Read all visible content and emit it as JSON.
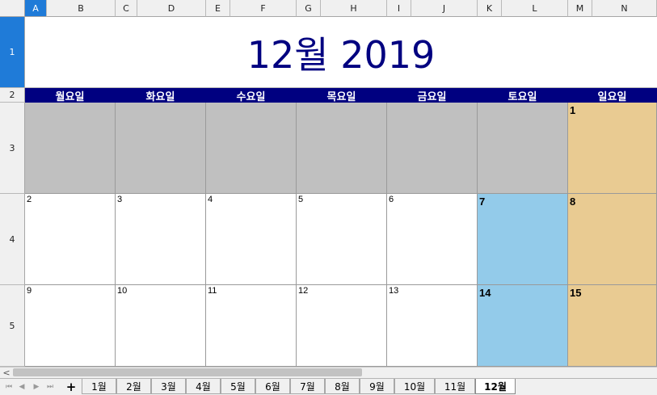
{
  "columns": [
    "A",
    "B",
    "C",
    "D",
    "E",
    "F",
    "G",
    "H",
    "I",
    "J",
    "K",
    "L",
    "M",
    "N"
  ],
  "selected_column": "A",
  "rows": [
    "1",
    "2",
    "3",
    "4",
    "5"
  ],
  "selected_row": "1",
  "calendar": {
    "title": "12월 2019",
    "weekdays": [
      "월요일",
      "화요일",
      "수요일",
      "목요일",
      "금요일",
      "토요일",
      "일요일"
    ],
    "weeks": [
      [
        "",
        "",
        "",
        "",
        "",
        "",
        "1"
      ],
      [
        "2",
        "3",
        "4",
        "5",
        "6",
        "7",
        "8"
      ],
      [
        "9",
        "10",
        "11",
        "12",
        "13",
        "14",
        "15"
      ]
    ]
  },
  "colors": {
    "title_text": "#000080",
    "weekday_header_bg": "#000080",
    "empty_cell": "#c0c0c0",
    "saturday": "#93cbea",
    "sunday": "#e9cb92",
    "selection": "#1f7bd8"
  },
  "sheet_tabs": [
    "1월",
    "2월",
    "3월",
    "4월",
    "5월",
    "6월",
    "7월",
    "8월",
    "9월",
    "10월",
    "11월",
    "12월"
  ],
  "active_sheet": "12월",
  "icons": {
    "nav_first": "⏮",
    "nav_prev": "◀",
    "nav_next": "▶",
    "nav_last": "⏭",
    "add_sheet": "+",
    "scroll_left": "<"
  }
}
